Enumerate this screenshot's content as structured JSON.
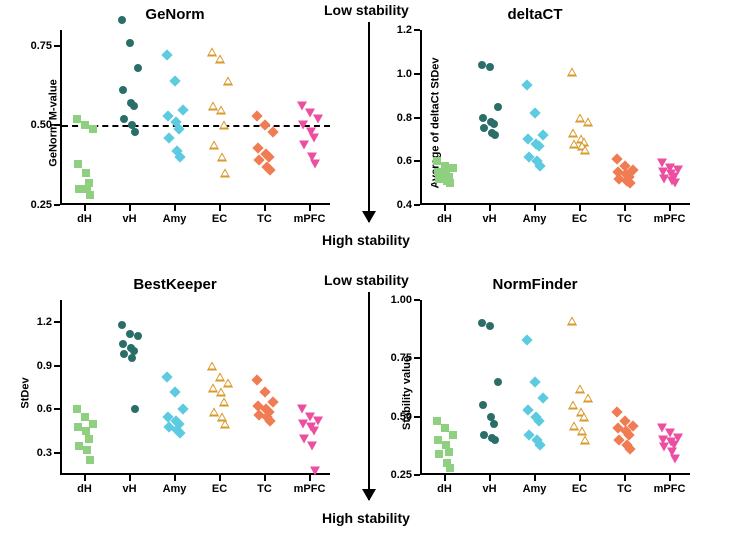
{
  "arrows": {
    "top_label": "Low stability",
    "bottom_label": "High stability"
  },
  "categories": [
    "dH",
    "vH",
    "Amy",
    "EC",
    "TC",
    "mPFC"
  ],
  "series_style": {
    "dH": {
      "shape": "square",
      "fill": "#8ed07f",
      "stroke": "#8ed07f"
    },
    "vH": {
      "shape": "circle",
      "fill": "#2a6e6a",
      "stroke": "#2a6e6a"
    },
    "Amy": {
      "shape": "diamond",
      "fill": "#5ccbe0",
      "stroke": "#5ccbe0"
    },
    "EC": {
      "shape": "tri-up",
      "fill": "#ffffff",
      "stroke": "#d89a2b"
    },
    "TC": {
      "shape": "diamond",
      "fill": "#ef7c53",
      "stroke": "#ef7c53"
    },
    "mPFC": {
      "shape": "tri-dn",
      "fill": "#ec4fa1",
      "stroke": "#ec4fa1"
    }
  },
  "panels": [
    {
      "id": "genorm",
      "title": "GeNorm",
      "ylabel": "GeNorm M-value",
      "ylim": [
        0.25,
        0.8
      ],
      "yticks": [
        0.25,
        0.5,
        0.75
      ],
      "dashline": 0.5,
      "data": {
        "dH": [
          0.52,
          0.5,
          0.49,
          0.38,
          0.3,
          0.28,
          0.35,
          0.3,
          0.32
        ],
        "vH": [
          0.83,
          0.76,
          0.68,
          0.57,
          0.56,
          0.61,
          0.52,
          0.5,
          0.48
        ],
        "Amy": [
          0.72,
          0.64,
          0.53,
          0.51,
          0.49,
          0.55,
          0.42,
          0.46,
          0.4
        ],
        "EC": [
          0.73,
          0.71,
          0.64,
          0.56,
          0.55,
          0.5,
          0.44,
          0.4,
          0.35
        ],
        "TC": [
          0.53,
          0.5,
          0.41,
          0.48,
          0.39,
          0.43,
          0.37,
          0.4,
          0.36
        ],
        "mPFC": [
          0.56,
          0.54,
          0.52,
          0.5,
          0.48,
          0.46,
          0.44,
          0.4,
          0.38
        ]
      }
    },
    {
      "id": "deltact",
      "title": "deltaCT",
      "ylabel": "Average of deltaCt StDev",
      "ylim": [
        0.4,
        1.2
      ],
      "yticks": [
        0.4,
        0.6,
        0.8,
        1.0,
        1.2
      ],
      "data": {
        "dH": [
          0.6,
          0.58,
          0.57,
          0.55,
          0.54,
          0.53,
          0.52,
          0.51,
          0.5
        ],
        "vH": [
          1.04,
          1.03,
          0.85,
          0.8,
          0.78,
          0.77,
          0.75,
          0.73,
          0.72
        ],
        "Amy": [
          0.95,
          0.82,
          0.72,
          0.68,
          0.67,
          0.7,
          0.62,
          0.6,
          0.58
        ],
        "EC": [
          1.01,
          0.8,
          0.78,
          0.73,
          0.7,
          0.69,
          0.68,
          0.67,
          0.65
        ],
        "TC": [
          0.61,
          0.58,
          0.56,
          0.55,
          0.54,
          0.53,
          0.52,
          0.51,
          0.5
        ],
        "mPFC": [
          0.59,
          0.57,
          0.56,
          0.55,
          0.54,
          0.53,
          0.52,
          0.51,
          0.5
        ]
      }
    },
    {
      "id": "bestkeeper",
      "title": "BestKeeper",
      "ylabel": "StDev",
      "ylim": [
        0.15,
        1.35
      ],
      "yticks": [
        0.3,
        0.6,
        0.9,
        1.2
      ],
      "data": {
        "dH": [
          0.6,
          0.55,
          0.5,
          0.48,
          0.45,
          0.4,
          0.35,
          0.32,
          0.25
        ],
        "vH": [
          1.18,
          1.12,
          1.1,
          1.05,
          1.0,
          0.98,
          1.02,
          0.95,
          0.6
        ],
        "Amy": [
          0.82,
          0.72,
          0.6,
          0.55,
          0.52,
          0.5,
          0.48,
          0.46,
          0.44
        ],
        "EC": [
          0.9,
          0.82,
          0.78,
          0.75,
          0.72,
          0.65,
          0.58,
          0.55,
          0.5
        ],
        "TC": [
          0.8,
          0.72,
          0.65,
          0.62,
          0.6,
          0.58,
          0.56,
          0.55,
          0.52
        ],
        "mPFC": [
          0.6,
          0.55,
          0.52,
          0.5,
          0.48,
          0.45,
          0.4,
          0.35,
          0.18
        ]
      }
    },
    {
      "id": "normfinder",
      "title": "NormFinder",
      "ylabel": "Stability value",
      "ylim": [
        0.25,
        1.0
      ],
      "yticks": [
        0.25,
        0.5,
        0.75,
        1.0
      ],
      "data": {
        "dH": [
          0.48,
          0.45,
          0.42,
          0.4,
          0.38,
          0.35,
          0.34,
          0.3,
          0.28
        ],
        "vH": [
          0.9,
          0.89,
          0.65,
          0.55,
          0.5,
          0.47,
          0.42,
          0.41,
          0.4
        ],
        "Amy": [
          0.83,
          0.65,
          0.58,
          0.53,
          0.48,
          0.5,
          0.42,
          0.4,
          0.38
        ],
        "EC": [
          0.91,
          0.62,
          0.58,
          0.55,
          0.52,
          0.5,
          0.46,
          0.44,
          0.4
        ],
        "TC": [
          0.52,
          0.48,
          0.46,
          0.45,
          0.44,
          0.42,
          0.4,
          0.38,
          0.36
        ],
        "mPFC": [
          0.45,
          0.43,
          0.41,
          0.4,
          0.39,
          0.38,
          0.37,
          0.35,
          0.32
        ]
      }
    }
  ],
  "style": {
    "background": "#ffffff",
    "axis_color": "#000000",
    "title_fontsize": 15,
    "label_fontsize": 11,
    "tick_fontsize": 11,
    "marker_size": 8
  }
}
